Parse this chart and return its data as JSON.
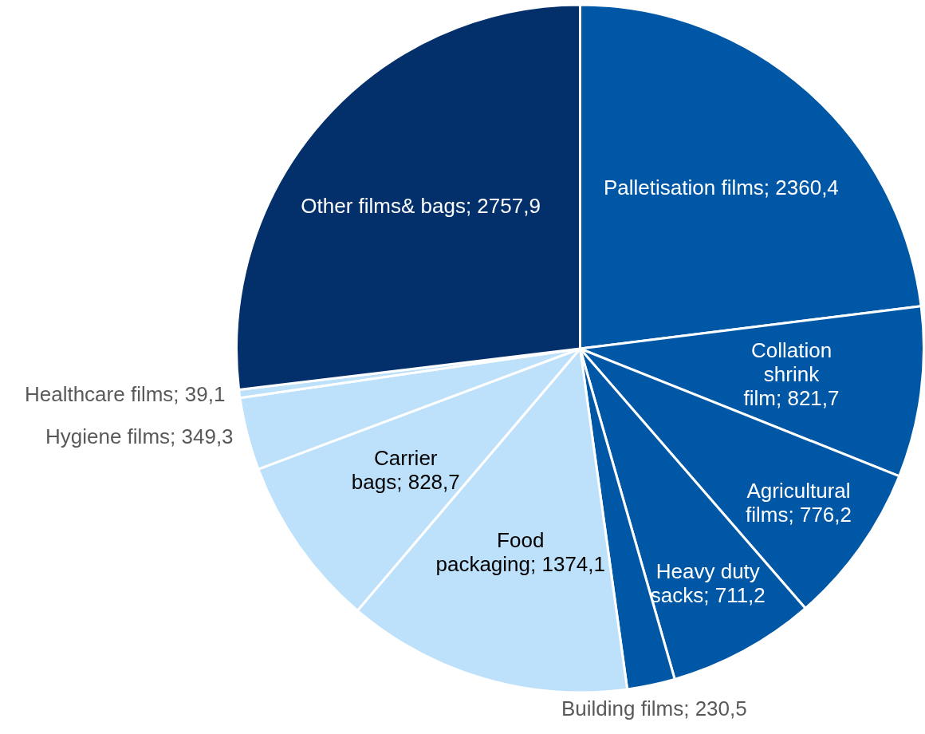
{
  "chart_data": {
    "type": "pie",
    "categories": [
      "Palletisation films",
      "Collation shrink film",
      "Agricultural films",
      "Heavy duty sacks",
      "Building films",
      "Food packaging",
      "Carrier bags",
      "Hygiene films",
      "Healthcare films",
      "Other films& bags"
    ],
    "values": [
      2360.4,
      821.7,
      776.2,
      711.2,
      230.5,
      1374.1,
      828.7,
      349.3,
      39.1,
      2757.9
    ],
    "value_labels": [
      "2360,4",
      "821,7",
      "776,2",
      "711,2",
      "230,5",
      "1374,1",
      "828,7",
      "349,3",
      "39,1",
      "2757,9"
    ],
    "colors": [
      "#0057a6",
      "#0057a6",
      "#0057a6",
      "#0057a6",
      "#0057a6",
      "#bde0fb",
      "#bde0fb",
      "#bde0fb",
      "#bde0fb",
      "#03306b"
    ],
    "legend": false
  }
}
